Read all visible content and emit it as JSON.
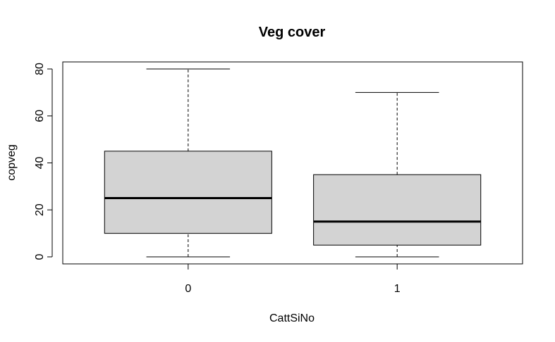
{
  "chart_data": {
    "type": "box",
    "title": "Veg cover",
    "xlabel": "CattSiNo",
    "ylabel": "copveg",
    "ylim": [
      -3,
      83
    ],
    "yticks": [
      0,
      20,
      40,
      60,
      80
    ],
    "categories": [
      "0",
      "1"
    ],
    "boxes": [
      {
        "category": "0",
        "min": 0,
        "q1": 10,
        "median": 25,
        "q3": 45,
        "max": 80
      },
      {
        "category": "1",
        "min": 0,
        "q1": 5,
        "median": 15,
        "q3": 35,
        "max": 70
      }
    ],
    "box_fill": "#d3d3d3",
    "grid": false
  }
}
